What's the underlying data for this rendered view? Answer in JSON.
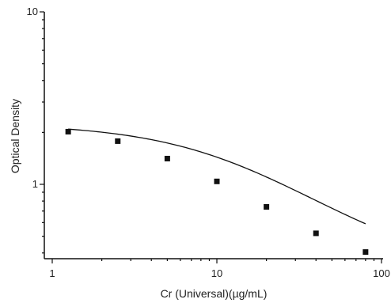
{
  "chart_data": {
    "type": "scatter",
    "xlabel": "Cr (Universal)(µg/mL)",
    "ylabel": "Optical Density",
    "x_scale": "log",
    "y_scale": "log",
    "xlim": [
      1,
      100
    ],
    "ylim": [
      0.35,
      10
    ],
    "x_ticks": [
      "1",
      "10",
      "100"
    ],
    "y_ticks": [
      "1",
      "10"
    ],
    "grid": false,
    "series": [
      {
        "x": [
          1.25,
          2.5,
          5,
          10,
          20,
          40,
          80
        ],
        "y": [
          2.02,
          1.78,
          1.41,
          1.04,
          0.74,
          0.52,
          0.405
        ],
        "marker": "square",
        "fit_curve": true
      }
    ],
    "colors": {
      "line": "#111111",
      "marker": "#111111",
      "axis": "#111111"
    }
  }
}
